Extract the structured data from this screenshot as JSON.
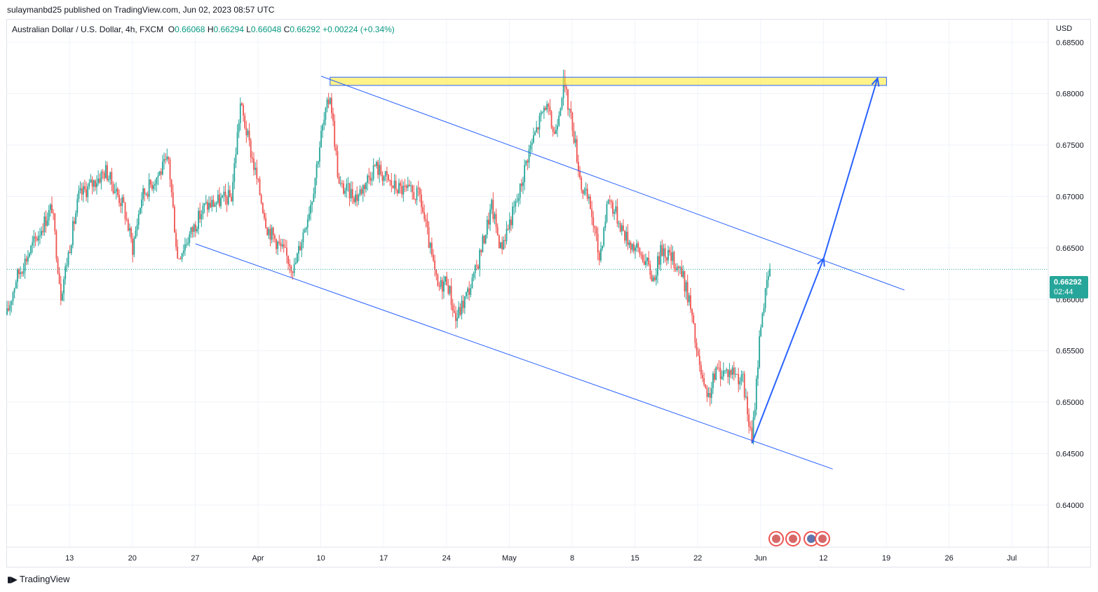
{
  "header": {
    "published_text": "sulaymanbd25 published on TradingView.com, Jun 02, 2023 08:57 UTC"
  },
  "legend": {
    "instrument": "Australian Dollar / U.S. Dollar, 4h, FXCM",
    "o_label": "O",
    "o_value": "0.66068",
    "h_label": "H",
    "h_value": "0.66294",
    "l_label": "L",
    "l_value": "0.66048",
    "c_label": "C",
    "c_value": "0.66292",
    "change": "+0.00224 (+0.34%)"
  },
  "currency": "USD",
  "price_tag": {
    "price": "0.66292",
    "countdown": "02:44"
  },
  "footer": {
    "brand": "TradingView"
  },
  "colors": {
    "up": "#26a69a",
    "down": "#ef5350",
    "trendline": "#2962ff",
    "zone_fill": "#ffeb3b",
    "grid": "#f0f3fa"
  },
  "chart_data": {
    "type": "candlestick",
    "y_ticks": [
      "0.68500",
      "0.68000",
      "0.67500",
      "0.67000",
      "0.66500",
      "0.66000",
      "0.65500",
      "0.65000",
      "0.64500",
      "0.64000"
    ],
    "ylim": [
      0.6359,
      0.6872
    ],
    "x_ticks": [
      "13",
      "20",
      "27",
      "Apr",
      "10",
      "17",
      "24",
      "May",
      "8",
      "15",
      "22",
      "Jun",
      "12",
      "19",
      "26",
      "Jul"
    ],
    "last_price": 0.66292,
    "price_path": [
      {
        "date": "2023-03-09",
        "price": 0.6585
      },
      {
        "date": "2023-03-10",
        "price": 0.662
      },
      {
        "date": "2023-03-14",
        "price": 0.669
      },
      {
        "date": "2023-03-15",
        "price": 0.6605
      },
      {
        "date": "2023-03-17",
        "price": 0.67
      },
      {
        "date": "2023-03-20",
        "price": 0.6725
      },
      {
        "date": "2023-03-22",
        "price": 0.669
      },
      {
        "date": "2023-03-23",
        "price": 0.665
      },
      {
        "date": "2023-03-24",
        "price": 0.67
      },
      {
        "date": "2023-03-27",
        "price": 0.6735
      },
      {
        "date": "2023-03-28",
        "price": 0.664
      },
      {
        "date": "2023-03-31",
        "price": 0.669
      },
      {
        "date": "2023-04-03",
        "price": 0.67
      },
      {
        "date": "2023-04-04",
        "price": 0.679
      },
      {
        "date": "2023-04-06",
        "price": 0.671
      },
      {
        "date": "2023-04-07",
        "price": 0.667
      },
      {
        "date": "2023-04-10",
        "price": 0.663
      },
      {
        "date": "2023-04-12",
        "price": 0.67
      },
      {
        "date": "2023-04-13",
        "price": 0.676
      },
      {
        "date": "2023-04-14",
        "price": 0.68
      },
      {
        "date": "2023-04-15",
        "price": 0.671
      },
      {
        "date": "2023-04-17",
        "price": 0.67
      },
      {
        "date": "2023-04-19",
        "price": 0.673
      },
      {
        "date": "2023-04-21",
        "price": 0.671
      },
      {
        "date": "2023-04-24",
        "price": 0.67
      },
      {
        "date": "2023-04-26",
        "price": 0.661
      },
      {
        "date": "2023-04-27",
        "price": 0.662
      },
      {
        "date": "2023-04-28",
        "price": 0.658
      },
      {
        "date": "2023-04-30",
        "price": 0.662
      },
      {
        "date": "2023-05-02",
        "price": 0.669
      },
      {
        "date": "2023-05-03",
        "price": 0.665
      },
      {
        "date": "2023-05-05",
        "price": 0.67
      },
      {
        "date": "2023-05-06",
        "price": 0.674
      },
      {
        "date": "2023-05-08",
        "price": 0.679
      },
      {
        "date": "2023-05-09",
        "price": 0.676
      },
      {
        "date": "2023-05-10",
        "price": 0.681
      },
      {
        "date": "2023-05-11",
        "price": 0.677
      },
      {
        "date": "2023-05-12",
        "price": 0.671
      },
      {
        "date": "2023-05-13",
        "price": 0.669
      },
      {
        "date": "2023-05-14",
        "price": 0.664
      },
      {
        "date": "2023-05-15",
        "price": 0.67
      },
      {
        "date": "2023-05-17",
        "price": 0.666
      },
      {
        "date": "2023-05-19",
        "price": 0.664
      },
      {
        "date": "2023-05-20",
        "price": 0.662
      },
      {
        "date": "2023-05-21",
        "price": 0.665
      },
      {
        "date": "2023-05-23",
        "price": 0.663
      },
      {
        "date": "2023-05-24",
        "price": 0.66
      },
      {
        "date": "2023-05-25",
        "price": 0.654
      },
      {
        "date": "2023-05-26",
        "price": 0.65
      },
      {
        "date": "2023-05-27",
        "price": 0.653
      },
      {
        "date": "2023-05-29",
        "price": 0.653
      },
      {
        "date": "2023-05-30",
        "price": 0.652
      },
      {
        "date": "2023-05-31",
        "price": 0.646
      },
      {
        "date": "2023-06-01",
        "price": 0.658
      },
      {
        "date": "2023-06-02",
        "price": 0.6629
      }
    ],
    "annotations": {
      "resistance_zone": {
        "from": "2023-04-14",
        "to": "2023-06-15",
        "low": 0.6808,
        "high": 0.6816
      },
      "channel_upper": [
        {
          "date": "2023-04-13",
          "price": 0.6817
        },
        {
          "date": "2023-06-17",
          "price": 0.6609
        }
      ],
      "channel_lower": [
        {
          "date": "2023-03-30",
          "price": 0.6654
        },
        {
          "date": "2023-06-09",
          "price": 0.6435
        }
      ],
      "projection_arrow": [
        {
          "date": "2023-05-31",
          "price": 0.646
        },
        {
          "date": "2023-06-08",
          "price": 0.664
        },
        {
          "date": "2023-06-14",
          "price": 0.6815
        }
      ]
    }
  }
}
